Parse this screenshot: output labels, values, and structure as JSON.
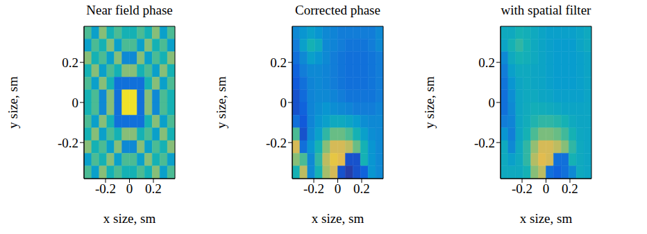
{
  "chart_data": [
    {
      "type": "heatmap",
      "title": "Near field phase",
      "x_label": "x size, sm",
      "y_label": "y size, sm",
      "xlim": [
        -0.38,
        0.38
      ],
      "ylim": [
        -0.38,
        0.38
      ],
      "xticks": [
        -0.2,
        0,
        0.2
      ],
      "yticks": [
        -0.2,
        0,
        0.2
      ],
      "zlim": [
        0,
        1
      ],
      "cells": [
        [
          0.6,
          0.4,
          0.7,
          0.5,
          0.6,
          0.5,
          0.5,
          0.6,
          0.5,
          0.7,
          0.4,
          0.6
        ],
        [
          0.4,
          0.6,
          0.5,
          0.7,
          0.4,
          0.6,
          0.6,
          0.4,
          0.7,
          0.5,
          0.6,
          0.4
        ],
        [
          0.7,
          0.5,
          0.6,
          0.4,
          0.7,
          0.3,
          0.3,
          0.7,
          0.4,
          0.6,
          0.5,
          0.7
        ],
        [
          0.5,
          0.7,
          0.4,
          0.6,
          0.5,
          0.7,
          0.7,
          0.5,
          0.6,
          0.4,
          0.7,
          0.5
        ],
        [
          0.6,
          0.4,
          0.7,
          0.5,
          0.2,
          0.2,
          0.2,
          0.2,
          0.5,
          0.7,
          0.4,
          0.6
        ],
        [
          0.5,
          0.6,
          0.3,
          0.7,
          0.2,
          0.95,
          0.95,
          0.2,
          0.7,
          0.3,
          0.6,
          0.5
        ],
        [
          0.5,
          0.6,
          0.3,
          0.7,
          0.2,
          0.95,
          0.95,
          0.2,
          0.7,
          0.3,
          0.6,
          0.5
        ],
        [
          0.6,
          0.4,
          0.7,
          0.5,
          0.2,
          0.2,
          0.2,
          0.2,
          0.5,
          0.7,
          0.4,
          0.6
        ],
        [
          0.5,
          0.7,
          0.4,
          0.6,
          0.5,
          0.7,
          0.7,
          0.5,
          0.6,
          0.4,
          0.7,
          0.5
        ],
        [
          0.7,
          0.5,
          0.6,
          0.4,
          0.7,
          0.3,
          0.3,
          0.7,
          0.4,
          0.6,
          0.5,
          0.7
        ],
        [
          0.4,
          0.6,
          0.5,
          0.7,
          0.4,
          0.6,
          0.6,
          0.4,
          0.7,
          0.5,
          0.6,
          0.4
        ],
        [
          0.6,
          0.4,
          0.7,
          0.5,
          0.6,
          0.5,
          0.5,
          0.6,
          0.5,
          0.7,
          0.4,
          0.6
        ]
      ]
    },
    {
      "type": "heatmap",
      "title": "Corrected phase",
      "x_label": "x size, sm",
      "y_label": "y size, sm",
      "xlim": [
        -0.38,
        0.38
      ],
      "ylim": [
        -0.38,
        0.38
      ],
      "xticks": [
        -0.2,
        0,
        0.2
      ],
      "yticks": [
        -0.2,
        0,
        0.2
      ],
      "zlim": [
        0,
        1
      ],
      "cells": [
        [
          0.3,
          0.35,
          0.4,
          0.35,
          0.3,
          0.28,
          0.25,
          0.25,
          0.25,
          0.25,
          0.25,
          0.3
        ],
        [
          0.25,
          0.4,
          0.5,
          0.45,
          0.3,
          0.28,
          0.25,
          0.22,
          0.22,
          0.22,
          0.25,
          0.3
        ],
        [
          0.2,
          0.3,
          0.4,
          0.35,
          0.3,
          0.25,
          0.22,
          0.2,
          0.2,
          0.2,
          0.22,
          0.25
        ],
        [
          0.15,
          0.25,
          0.3,
          0.3,
          0.28,
          0.25,
          0.22,
          0.2,
          0.2,
          0.2,
          0.22,
          0.25
        ],
        [
          0.12,
          0.2,
          0.28,
          0.3,
          0.28,
          0.25,
          0.22,
          0.2,
          0.2,
          0.2,
          0.22,
          0.25
        ],
        [
          0.1,
          0.18,
          0.28,
          0.3,
          0.3,
          0.28,
          0.25,
          0.22,
          0.22,
          0.22,
          0.22,
          0.25
        ],
        [
          0.1,
          0.15,
          0.28,
          0.32,
          0.35,
          0.32,
          0.3,
          0.28,
          0.25,
          0.25,
          0.25,
          0.28
        ],
        [
          0.2,
          0.12,
          0.28,
          0.35,
          0.4,
          0.45,
          0.45,
          0.42,
          0.38,
          0.32,
          0.3,
          0.3
        ],
        [
          0.6,
          0.1,
          0.3,
          0.4,
          0.55,
          0.65,
          0.65,
          0.6,
          0.5,
          0.4,
          0.32,
          0.3
        ],
        [
          0.85,
          0.2,
          0.35,
          0.5,
          0.7,
          0.85,
          0.85,
          0.8,
          0.65,
          0.5,
          0.35,
          0.3
        ],
        [
          0.7,
          0.6,
          0.3,
          0.55,
          0.8,
          0.9,
          0.88,
          0.1,
          0.1,
          0.5,
          0.35,
          0.3
        ],
        [
          0.5,
          0.8,
          0.3,
          0.5,
          0.75,
          0.85,
          0.1,
          0.05,
          0.1,
          0.15,
          0.35,
          0.3
        ]
      ]
    },
    {
      "type": "heatmap",
      "title": "with spatial filter",
      "x_label": "x size, sm",
      "y_label": "y size, sm",
      "xlim": [
        -0.38,
        0.38
      ],
      "ylim": [
        -0.38,
        0.38
      ],
      "xticks": [
        -0.2,
        0,
        0.2
      ],
      "yticks": [
        -0.2,
        0,
        0.2
      ],
      "zlim": [
        0,
        1
      ],
      "cells": [
        [
          0.45,
          0.45,
          0.5,
          0.48,
          0.45,
          0.42,
          0.4,
          0.4,
          0.4,
          0.4,
          0.42,
          0.45
        ],
        [
          0.42,
          0.5,
          0.55,
          0.5,
          0.45,
          0.42,
          0.4,
          0.38,
          0.38,
          0.38,
          0.42,
          0.45
        ],
        [
          0.3,
          0.45,
          0.5,
          0.48,
          0.45,
          0.42,
          0.4,
          0.38,
          0.38,
          0.38,
          0.4,
          0.42
        ],
        [
          0.25,
          0.4,
          0.45,
          0.45,
          0.43,
          0.42,
          0.4,
          0.38,
          0.38,
          0.38,
          0.4,
          0.42
        ],
        [
          0.22,
          0.35,
          0.43,
          0.45,
          0.43,
          0.42,
          0.4,
          0.38,
          0.38,
          0.38,
          0.4,
          0.42
        ],
        [
          0.2,
          0.32,
          0.43,
          0.45,
          0.45,
          0.43,
          0.42,
          0.4,
          0.4,
          0.4,
          0.4,
          0.42
        ],
        [
          0.2,
          0.3,
          0.43,
          0.46,
          0.48,
          0.47,
          0.46,
          0.44,
          0.42,
          0.42,
          0.42,
          0.43
        ],
        [
          0.25,
          0.28,
          0.43,
          0.47,
          0.52,
          0.55,
          0.55,
          0.53,
          0.5,
          0.45,
          0.43,
          0.43
        ],
        [
          0.35,
          0.26,
          0.43,
          0.5,
          0.6,
          0.68,
          0.68,
          0.65,
          0.58,
          0.5,
          0.44,
          0.43
        ],
        [
          0.45,
          0.3,
          0.45,
          0.55,
          0.72,
          0.85,
          0.85,
          0.8,
          0.7,
          0.55,
          0.45,
          0.43
        ],
        [
          0.45,
          0.4,
          0.45,
          0.55,
          0.78,
          0.88,
          0.85,
          0.2,
          0.2,
          0.5,
          0.45,
          0.43
        ],
        [
          0.45,
          0.45,
          0.45,
          0.5,
          0.7,
          0.8,
          0.2,
          0.15,
          0.2,
          0.3,
          0.45,
          0.43
        ]
      ]
    }
  ]
}
